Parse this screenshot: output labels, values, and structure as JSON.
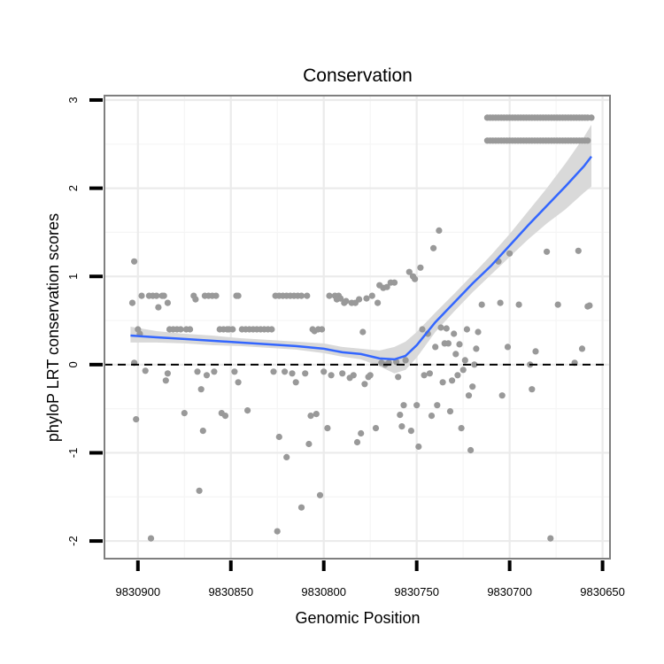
{
  "chart_data": {
    "type": "scatter",
    "title": "Conservation",
    "xlabel": "Genomic Position",
    "ylabel": "phyloP LRT conservation scores",
    "xlim": [
      9830918,
      9830646
    ],
    "x_reversed": true,
    "ylim": [
      -2.2,
      3.05
    ],
    "xticks": [
      9830900,
      9830850,
      9830800,
      9830750,
      9830700,
      9830650
    ],
    "xtick_labels": [
      "9830900",
      "9830850",
      "9830800",
      "9830750",
      "9830700",
      "9830650"
    ],
    "yticks": [
      -2,
      -1,
      0,
      1,
      2,
      3
    ],
    "ytick_labels": [
      "-2",
      "-1",
      "0",
      "1",
      "2",
      "3"
    ],
    "reference_line": {
      "y": 0,
      "style": "dashed",
      "color": "#000000"
    },
    "point_color": "#999999",
    "smooth_color": "#3366ff",
    "ribbon_color": "#d9d9d9",
    "points": [
      {
        "x": 9830903,
        "y": 0.7
      },
      {
        "x": 9830902,
        "y": 1.17
      },
      {
        "x": 9830902,
        "y": 0.02
      },
      {
        "x": 9830901,
        "y": -0.62
      },
      {
        "x": 9830900,
        "y": 0.4
      },
      {
        "x": 9830899,
        "y": 0.35
      },
      {
        "x": 9830898,
        "y": 0.78
      },
      {
        "x": 9830896,
        "y": -0.07
      },
      {
        "x": 9830894,
        "y": 0.78
      },
      {
        "x": 9830893,
        "y": -1.97
      },
      {
        "x": 9830892,
        "y": 0.78
      },
      {
        "x": 9830890,
        "y": 0.78
      },
      {
        "x": 9830889,
        "y": 0.65
      },
      {
        "x": 9830887,
        "y": 0.78
      },
      {
        "x": 9830886,
        "y": 0.78
      },
      {
        "x": 9830885,
        "y": -0.18
      },
      {
        "x": 9830884,
        "y": 0.7
      },
      {
        "x": 9830884,
        "y": -0.1
      },
      {
        "x": 9830883,
        "y": 0.4
      },
      {
        "x": 9830881,
        "y": 0.4
      },
      {
        "x": 9830879,
        "y": 0.4
      },
      {
        "x": 9830877,
        "y": 0.4
      },
      {
        "x": 9830875,
        "y": -0.55
      },
      {
        "x": 9830874,
        "y": 0.4
      },
      {
        "x": 9830872,
        "y": 0.4
      },
      {
        "x": 9830870,
        "y": 0.78
      },
      {
        "x": 9830869,
        "y": 0.74
      },
      {
        "x": 9830868,
        "y": -0.08
      },
      {
        "x": 9830867,
        "y": -1.43
      },
      {
        "x": 9830866,
        "y": -0.28
      },
      {
        "x": 9830865,
        "y": -0.75
      },
      {
        "x": 9830864,
        "y": 0.78
      },
      {
        "x": 9830863,
        "y": -0.12
      },
      {
        "x": 9830862,
        "y": 0.78
      },
      {
        "x": 9830860,
        "y": 0.78
      },
      {
        "x": 9830859,
        "y": -0.08
      },
      {
        "x": 9830858,
        "y": 0.78
      },
      {
        "x": 9830856,
        "y": 0.4
      },
      {
        "x": 9830855,
        "y": -0.55
      },
      {
        "x": 9830854,
        "y": 0.4
      },
      {
        "x": 9830853,
        "y": -0.58
      },
      {
        "x": 9830852,
        "y": 0.4
      },
      {
        "x": 9830851,
        "y": 0.4
      },
      {
        "x": 9830849,
        "y": 0.4
      },
      {
        "x": 9830848,
        "y": -0.08
      },
      {
        "x": 9830847,
        "y": 0.78
      },
      {
        "x": 9830846,
        "y": 0.78
      },
      {
        "x": 9830846,
        "y": -0.2
      },
      {
        "x": 9830844,
        "y": 0.4
      },
      {
        "x": 9830842,
        "y": 0.4
      },
      {
        "x": 9830841,
        "y": -0.52
      },
      {
        "x": 9830840,
        "y": 0.4
      },
      {
        "x": 9830838,
        "y": 0.4
      },
      {
        "x": 9830836,
        "y": 0.4
      },
      {
        "x": 9830834,
        "y": 0.4
      },
      {
        "x": 9830832,
        "y": 0.4
      },
      {
        "x": 9830830,
        "y": 0.4
      },
      {
        "x": 9830828,
        "y": 0.4
      },
      {
        "x": 9830827,
        "y": -0.08
      },
      {
        "x": 9830826,
        "y": 0.78
      },
      {
        "x": 9830825,
        "y": -1.89
      },
      {
        "x": 9830824,
        "y": -0.82
      },
      {
        "x": 9830824,
        "y": 0.78
      },
      {
        "x": 9830822,
        "y": 0.78
      },
      {
        "x": 9830821,
        "y": -0.08
      },
      {
        "x": 9830820,
        "y": -1.05
      },
      {
        "x": 9830820,
        "y": 0.78
      },
      {
        "x": 9830818,
        "y": 0.78
      },
      {
        "x": 9830817,
        "y": -0.1
      },
      {
        "x": 9830816,
        "y": 0.78
      },
      {
        "x": 9830815,
        "y": -0.2
      },
      {
        "x": 9830814,
        "y": 0.78
      },
      {
        "x": 9830812,
        "y": -1.62
      },
      {
        "x": 9830812,
        "y": 0.78
      },
      {
        "x": 9830810,
        "y": -0.1
      },
      {
        "x": 9830809,
        "y": 0.78
      },
      {
        "x": 9830808,
        "y": -0.9
      },
      {
        "x": 9830807,
        "y": -0.58
      },
      {
        "x": 9830806,
        "y": 0.4
      },
      {
        "x": 9830805,
        "y": 0.38
      },
      {
        "x": 9830804,
        "y": -0.56
      },
      {
        "x": 9830803,
        "y": 0.4
      },
      {
        "x": 9830802,
        "y": -1.48
      },
      {
        "x": 9830801,
        "y": 0.4
      },
      {
        "x": 9830800,
        "y": -0.08
      },
      {
        "x": 9830798,
        "y": -0.72
      },
      {
        "x": 9830797,
        "y": 0.78
      },
      {
        "x": 9830796,
        "y": -0.12
      },
      {
        "x": 9830794,
        "y": 0.78
      },
      {
        "x": 9830793,
        "y": 0.74
      },
      {
        "x": 9830792,
        "y": 0.78
      },
      {
        "x": 9830791,
        "y": 0.75
      },
      {
        "x": 9830790,
        "y": -0.1
      },
      {
        "x": 9830789,
        "y": 0.7
      },
      {
        "x": 9830788,
        "y": 0.72
      },
      {
        "x": 9830786,
        "y": -0.15
      },
      {
        "x": 9830785,
        "y": 0.7
      },
      {
        "x": 9830784,
        "y": -0.12
      },
      {
        "x": 9830783,
        "y": 0.7
      },
      {
        "x": 9830782,
        "y": -0.88
      },
      {
        "x": 9830781,
        "y": 0.74
      },
      {
        "x": 9830780,
        "y": -0.78
      },
      {
        "x": 9830779,
        "y": 0.37
      },
      {
        "x": 9830778,
        "y": -0.22
      },
      {
        "x": 9830777,
        "y": 0.75
      },
      {
        "x": 9830776,
        "y": -0.14
      },
      {
        "x": 9830775,
        "y": -0.12
      },
      {
        "x": 9830774,
        "y": 0.78
      },
      {
        "x": 9830772,
        "y": -0.72
      },
      {
        "x": 9830771,
        "y": 0.7
      },
      {
        "x": 9830770,
        "y": 0.9
      },
      {
        "x": 9830769,
        "y": 0.02
      },
      {
        "x": 9830768,
        "y": 0.87
      },
      {
        "x": 9830767,
        "y": 0.0
      },
      {
        "x": 9830766,
        "y": 0.88
      },
      {
        "x": 9830765,
        "y": 0.02
      },
      {
        "x": 9830764,
        "y": 0.93
      },
      {
        "x": 9830762,
        "y": 0.93
      },
      {
        "x": 9830761,
        "y": 0.03
      },
      {
        "x": 9830760,
        "y": -0.14
      },
      {
        "x": 9830759,
        "y": -0.57
      },
      {
        "x": 9830758,
        "y": -0.7
      },
      {
        "x": 9830757,
        "y": -0.46
      },
      {
        "x": 9830756,
        "y": 0.05
      },
      {
        "x": 9830754,
        "y": 1.05
      },
      {
        "x": 9830753,
        "y": -0.75
      },
      {
        "x": 9830752,
        "y": 1.0
      },
      {
        "x": 9830751,
        "y": 0.97
      },
      {
        "x": 9830750,
        "y": -0.46
      },
      {
        "x": 9830749,
        "y": -0.93
      },
      {
        "x": 9830748,
        "y": 1.1
      },
      {
        "x": 9830747,
        "y": 0.4
      },
      {
        "x": 9830746,
        "y": -0.12
      },
      {
        "x": 9830744,
        "y": 0.35
      },
      {
        "x": 9830743,
        "y": -0.1
      },
      {
        "x": 9830742,
        "y": -0.58
      },
      {
        "x": 9830741,
        "y": 1.32
      },
      {
        "x": 9830740,
        "y": 0.2
      },
      {
        "x": 9830739,
        "y": -0.46
      },
      {
        "x": 9830738,
        "y": 1.52
      },
      {
        "x": 9830737,
        "y": 0.42
      },
      {
        "x": 9830736,
        "y": -0.2
      },
      {
        "x": 9830735,
        "y": 0.24
      },
      {
        "x": 9830734,
        "y": 0.41
      },
      {
        "x": 9830733,
        "y": 0.24
      },
      {
        "x": 9830732,
        "y": -0.53
      },
      {
        "x": 9830731,
        "y": -0.18
      },
      {
        "x": 9830730,
        "y": 0.35
      },
      {
        "x": 9830729,
        "y": 0.12
      },
      {
        "x": 9830728,
        "y": -0.12
      },
      {
        "x": 9830727,
        "y": 0.23
      },
      {
        "x": 9830726,
        "y": -0.72
      },
      {
        "x": 9830725,
        "y": -0.06
      },
      {
        "x": 9830724,
        "y": 0.05
      },
      {
        "x": 9830723,
        "y": 0.4
      },
      {
        "x": 9830722,
        "y": -0.35
      },
      {
        "x": 9830721,
        "y": -0.97
      },
      {
        "x": 9830720,
        "y": -0.25
      },
      {
        "x": 9830719,
        "y": 0.0
      },
      {
        "x": 9830718,
        "y": 0.18
      },
      {
        "x": 9830717,
        "y": 0.37
      },
      {
        "x": 9830715,
        "y": 0.68
      },
      {
        "x": 9830706,
        "y": 1.17
      },
      {
        "x": 9830705,
        "y": 0.7
      },
      {
        "x": 9830704,
        "y": -0.35
      },
      {
        "x": 9830701,
        "y": 0.2
      },
      {
        "x": 9830700,
        "y": 1.26
      },
      {
        "x": 9830695,
        "y": 0.68
      },
      {
        "x": 9830689,
        "y": 0.0
      },
      {
        "x": 9830688,
        "y": -0.28
      },
      {
        "x": 9830686,
        "y": 0.15
      },
      {
        "x": 9830680,
        "y": 1.28
      },
      {
        "x": 9830678,
        "y": -1.97
      },
      {
        "x": 9830674,
        "y": 0.68
      },
      {
        "x": 9830665,
        "y": 0.02
      },
      {
        "x": 9830663,
        "y": 1.29
      },
      {
        "x": 9830661,
        "y": 0.18
      },
      {
        "x": 9830658,
        "y": 0.66
      },
      {
        "x": 9830656,
        "y": 2.8
      },
      {
        "x": 9830657,
        "y": 0.67
      }
    ],
    "upper_band_x_from": 9830712,
    "upper_band_x_to": 9830657,
    "upper_band_values": [
      2.8,
      2.54
    ],
    "smooth_line": {
      "x": [
        9830904,
        9830890,
        9830875,
        9830860,
        9830845,
        9830830,
        9830815,
        9830800,
        9830790,
        9830780,
        9830770,
        9830762,
        9830756,
        9830750,
        9830740,
        9830730,
        9830720,
        9830710,
        9830700,
        9830690,
        9830680,
        9830670,
        9830660,
        9830656
      ],
      "y": [
        0.33,
        0.31,
        0.29,
        0.27,
        0.25,
        0.23,
        0.21,
        0.18,
        0.14,
        0.12,
        0.07,
        0.06,
        0.1,
        0.22,
        0.48,
        0.7,
        0.92,
        1.12,
        1.35,
        1.58,
        1.8,
        2.02,
        2.25,
        2.36
      ],
      "lower": [
        0.25,
        0.25,
        0.24,
        0.22,
        0.21,
        0.19,
        0.17,
        0.13,
        0.09,
        0.06,
        -0.02,
        -0.1,
        -0.06,
        0.08,
        0.37,
        0.6,
        0.82,
        1.02,
        1.22,
        1.42,
        1.6,
        1.76,
        1.95,
        2.02
      ],
      "upper": [
        0.43,
        0.38,
        0.35,
        0.33,
        0.3,
        0.28,
        0.26,
        0.24,
        0.2,
        0.18,
        0.16,
        0.2,
        0.26,
        0.37,
        0.59,
        0.8,
        1.02,
        1.24,
        1.48,
        1.74,
        2.0,
        2.28,
        2.58,
        2.72
      ]
    }
  }
}
